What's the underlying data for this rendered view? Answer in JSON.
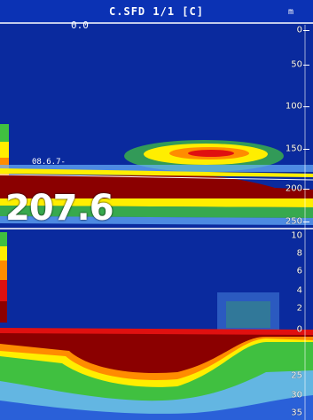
{
  "header": {
    "title": "C.SFD 1/1 [C]",
    "left_value": "0.0",
    "unit": "m"
  },
  "depth_readout": "207.6",
  "small_readout": "08.6.7-",
  "upper_scale": {
    "labels": [
      "0",
      "50",
      "100",
      "150",
      "200",
      "250"
    ]
  },
  "lower_scale": {
    "labels": [
      "10",
      "8",
      "6",
      "4",
      "2",
      "0",
      "25",
      "30",
      "35"
    ]
  },
  "colors": {
    "background": "#0a2a9e",
    "strong_echo": "#8b0000",
    "red": "#e01010",
    "orange": "#ff8c00",
    "yellow": "#ffee00",
    "green": "#40c040",
    "light_blue": "#6ab4ff",
    "white_line": "#ffffff"
  }
}
